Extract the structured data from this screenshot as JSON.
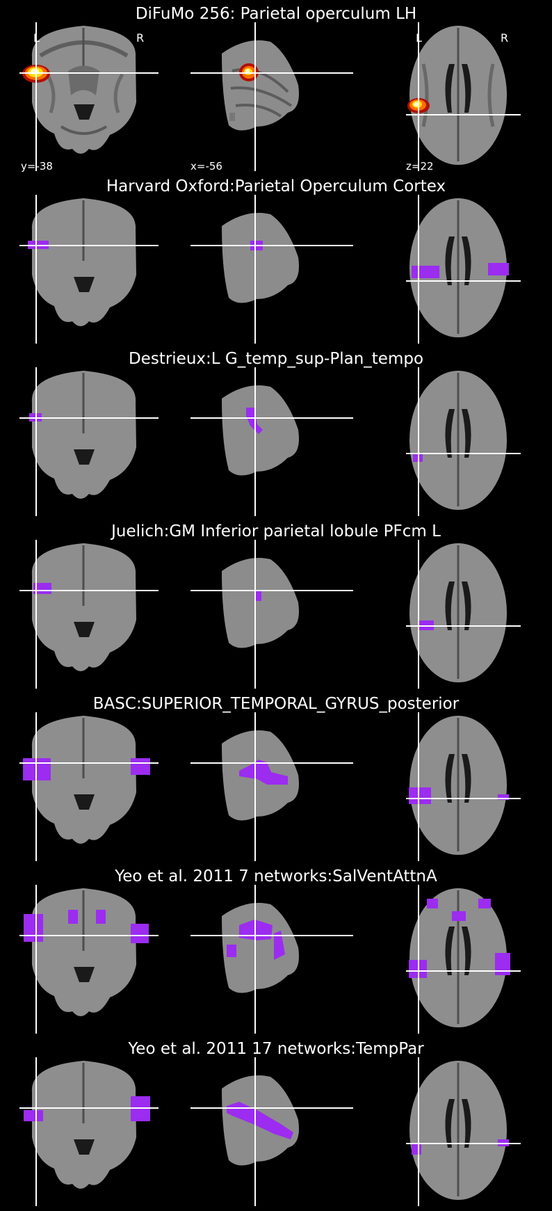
{
  "panels": [
    {
      "title": "DiFuMo 256: Parietal operculum LH",
      "overlay": "hot",
      "labels": {
        "left": "L",
        "right": "R",
        "left_axial": "L",
        "right_axial": "R",
        "y": "y=-38",
        "x": "x=-56",
        "z": "z=22"
      }
    },
    {
      "title": "Harvard Oxford:Parietal Operculum Cortex",
      "overlay": "purple"
    },
    {
      "title": "Destrieux:L G_temp_sup-Plan_tempo",
      "overlay": "purple"
    },
    {
      "title": "Juelich:GM Inferior parietal lobule PFcm L",
      "overlay": "purple"
    },
    {
      "title": "BASC:SUPERIOR_TEMPORAL_GYRUS_posterior",
      "overlay": "purple"
    },
    {
      "title": "Yeo et al. 2011 7 networks:SalVentAttnA",
      "overlay": "purple"
    },
    {
      "title": "Yeo et al. 2011 17 networks:TempPar",
      "overlay": "purple"
    }
  ],
  "colors": {
    "background": "#000000",
    "overlay_purple": "#9b2cf0",
    "overlay_hot_core": "#ffffa0",
    "overlay_hot_edge": "#e03000",
    "crosshair": "#ffffff"
  }
}
